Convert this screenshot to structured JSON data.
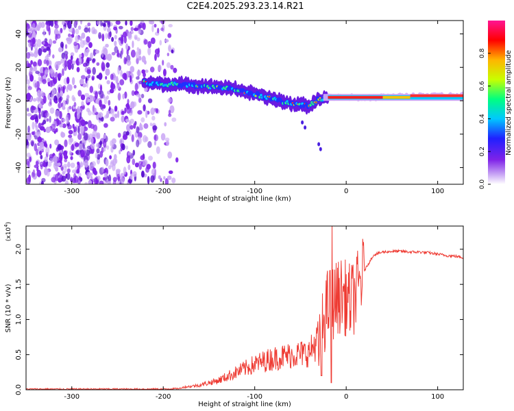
{
  "title": "C2E4.2025.293.23.14.R21",
  "colors": {
    "snr_line": "#ee3a32",
    "axis": "#000000",
    "background": "#ffffff"
  },
  "chart_data": [
    {
      "type": "heatmap",
      "name": "spectrogram",
      "xlabel": "Height of straight line (km)",
      "ylabel": "Frequency (Hz)",
      "xlim": [
        -350,
        128
      ],
      "ylim": [
        -50,
        48
      ],
      "xticks": [
        -300,
        -200,
        -100,
        0,
        100
      ],
      "xtick_labels": [
        "-300",
        "-200",
        "-100",
        "0",
        "100"
      ],
      "yticks": [
        -40,
        -20,
        0,
        20,
        40
      ],
      "ytick_labels": [
        "-40",
        "-20",
        "0",
        "20",
        "40"
      ],
      "colorbar": {
        "label": "Normalized spectral amplitude",
        "range": [
          0,
          1
        ],
        "ticks": [
          0.0,
          0.2,
          0.4,
          0.6,
          0.8
        ],
        "tick_labels": [
          "0.0",
          "0.2",
          "0.4",
          "0.6",
          "0.8"
        ],
        "colormap": [
          "#ffffff",
          "#c9a6f5",
          "#7f23e8",
          "#2020ff",
          "#00c8ff",
          "#00ff80",
          "#c8ff00",
          "#ffb400",
          "#ff0000",
          "#ff1493"
        ]
      },
      "noise_region": {
        "x_range": [
          -350,
          -185
        ],
        "description_free": true
      },
      "ridge": [
        {
          "x": -222,
          "f": 11
        },
        {
          "x": -200,
          "f": 10
        },
        {
          "x": -180,
          "f": 9.5
        },
        {
          "x": -160,
          "f": 9
        },
        {
          "x": -140,
          "f": 8
        },
        {
          "x": -120,
          "f": 7
        },
        {
          "x": -100,
          "f": 4
        },
        {
          "x": -80,
          "f": 1
        },
        {
          "x": -60,
          "f": -2
        },
        {
          "x": -40,
          "f": -3
        },
        {
          "x": -30,
          "f": 1
        },
        {
          "x": -20,
          "f": 2
        },
        {
          "x": 0,
          "f": 2
        },
        {
          "x": 40,
          "f": 2
        },
        {
          "x": 80,
          "f": 3
        },
        {
          "x": 128,
          "f": 3
        }
      ]
    },
    {
      "type": "line",
      "name": "snr",
      "xlabel": "Height of straight line (km)",
      "ylabel": "SNR (10 * v/v)",
      "y_multiplier_label": "(x10",
      "y_multiplier_exp": "4",
      "xlim": [
        -350,
        128
      ],
      "ylim": [
        0,
        2.33
      ],
      "xticks": [
        -300,
        -200,
        -100,
        0,
        100
      ],
      "xtick_labels": [
        "-300",
        "-200",
        "-100",
        "0",
        "100"
      ],
      "yticks": [
        0.0,
        0.5,
        1.0,
        1.5,
        2.0
      ],
      "ytick_labels": [
        "0.0",
        "0.5",
        "1.0",
        "1.5",
        "2.0"
      ],
      "series": [
        {
          "name": "SNR",
          "x": [
            -350,
            -300,
            -250,
            -200,
            -180,
            -160,
            -140,
            -120,
            -100,
            -80,
            -60,
            -40,
            -30,
            -25,
            -20,
            -15,
            -10,
            -5,
            0,
            5,
            10,
            20,
            30,
            40,
            50,
            60,
            70,
            80,
            90,
            100,
            110,
            120,
            128
          ],
          "y": [
            0.01,
            0.01,
            0.01,
            0.01,
            0.02,
            0.04,
            0.08,
            0.15,
            0.22,
            0.27,
            0.3,
            0.32,
            0.45,
            1.0,
            1.2,
            1.25,
            1.3,
            1.35,
            1.3,
            1.25,
            1.35,
            1.7,
            1.92,
            1.96,
            1.97,
            1.97,
            1.96,
            1.96,
            1.95,
            1.93,
            1.91,
            1.9,
            1.88
          ]
        }
      ]
    }
  ]
}
